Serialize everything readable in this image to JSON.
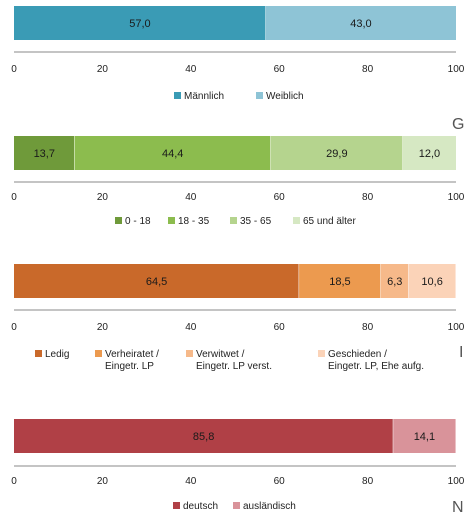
{
  "chart_data": [
    {
      "type": "bar",
      "orientation": "horizontal",
      "stacked": true,
      "xlim": [
        0,
        100
      ],
      "ticks": [
        "0",
        "20",
        "40",
        "60",
        "80",
        "100"
      ],
      "series": [
        {
          "name": "Männlich",
          "value": 57.0,
          "label": "57,0",
          "color": "#3a9bb5"
        },
        {
          "name": "Weiblich",
          "value": 43.0,
          "label": "43,0",
          "color": "#8ec4d6"
        }
      ]
    },
    {
      "type": "bar",
      "orientation": "horizontal",
      "stacked": true,
      "xlim": [
        0,
        100
      ],
      "ticks": [
        "0",
        "20",
        "40",
        "60",
        "80",
        "100"
      ],
      "series": [
        {
          "name": "0 - 18",
          "value": 13.7,
          "label": "13,7",
          "color": "#6f9a3a"
        },
        {
          "name": "18 - 35",
          "value": 44.4,
          "label": "44,4",
          "color": "#8cbc4e"
        },
        {
          "name": "35 - 65",
          "value": 29.9,
          "label": "29,9",
          "color": "#b5d48e"
        },
        {
          "name": "65 und älter",
          "value": 12.0,
          "label": "12,0",
          "color": "#d6e8c3"
        }
      ]
    },
    {
      "type": "bar",
      "orientation": "horizontal",
      "stacked": true,
      "xlim": [
        0,
        100
      ],
      "ticks": [
        "0",
        "20",
        "40",
        "60",
        "80",
        "100"
      ],
      "series": [
        {
          "name": "Ledig",
          "value": 64.5,
          "label": "64,5",
          "color": "#c9692a"
        },
        {
          "name": "Verheiratet /\nEingetr. LP",
          "value": 18.5,
          "label": "18,5",
          "color": "#ec9a4f"
        },
        {
          "name": "Verwitwet /\nEingetr. LP verst.",
          "value": 6.3,
          "label": "6,3",
          "color": "#f6b98a"
        },
        {
          "name": "Geschieden /\nEingetr. LP, Ehe aufg.",
          "value": 10.6,
          "label": "10,6",
          "color": "#fbd3b8"
        }
      ]
    },
    {
      "type": "bar",
      "orientation": "horizontal",
      "stacked": true,
      "xlim": [
        0,
        100
      ],
      "ticks": [
        "0",
        "20",
        "40",
        "60",
        "80",
        "100"
      ],
      "series": [
        {
          "name": "deutsch",
          "value": 85.8,
          "label": "85,8",
          "color": "#b04046"
        },
        {
          "name": "ausländisch",
          "value": 14.1,
          "label": "14,1",
          "color": "#d9939a"
        }
      ]
    }
  ],
  "stray_letters": [
    "G",
    "I",
    "N"
  ]
}
